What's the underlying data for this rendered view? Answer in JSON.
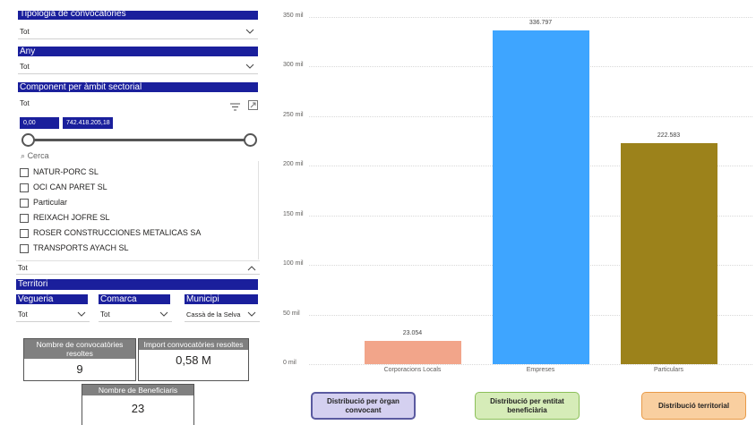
{
  "filters": {
    "tipologia": {
      "label": "Tipologia de convocatòries",
      "value": "Tot"
    },
    "any": {
      "label": "Any",
      "value": "Tot"
    },
    "component": {
      "label": "Component per àmbit sectorial",
      "value": "Tot"
    },
    "range": {
      "min": "0,00",
      "max": "742.418.205,18"
    },
    "search_placeholder": "Cerca",
    "items": [
      "NATUR-PORC SL",
      "OCI CAN PARET SL",
      "Particular",
      "REIXACH JOFRE SL",
      "ROSER CONSTRUCCIONES METALICAS SA",
      "TRANSPORTS AYACH SL"
    ],
    "list_footer_value": "Tot"
  },
  "territori": {
    "label": "Territori",
    "vegueria": {
      "label": "Vegueria",
      "value": "Tot"
    },
    "comarca": {
      "label": "Comarca",
      "value": "Tot"
    },
    "municipi": {
      "label": "Municipi",
      "value": "Cassà de la Selva"
    }
  },
  "cards": {
    "convocatories": {
      "title": "Nombre de convocatòries resoltes",
      "value": "9"
    },
    "import": {
      "title": "Import convocatòries resoltes",
      "value": "0,58 M"
    },
    "beneficiaris": {
      "title": "Nombre de Beneficiaris",
      "value": "23"
    }
  },
  "chart_data": {
    "type": "bar",
    "categories": [
      "Corporacions Locals",
      "Empreses",
      "Particulars"
    ],
    "values": [
      23054,
      336797,
      222583
    ],
    "data_labels": [
      "23.054",
      "336.797",
      "222.583"
    ],
    "colors": [
      "#f2a58a",
      "#3ea5ff",
      "#9c821b"
    ],
    "ylim": [
      0,
      350000
    ],
    "yticks": [
      0,
      50000,
      100000,
      150000,
      200000,
      250000,
      300000,
      350000
    ],
    "ytick_labels": [
      "0 mil",
      "50 mil",
      "100 mil",
      "150 mil",
      "200 mil",
      "250 mil",
      "300 mil",
      "350 mil"
    ],
    "grid": true
  },
  "nav_buttons": [
    {
      "label": "Distribució per òrgan convocant",
      "bg": "#d4d0f0",
      "border": "#5a5aa0"
    },
    {
      "label": "Distribució per entitat beneficiària",
      "bg": "#d6ecb8",
      "border": "#8cbf5a"
    },
    {
      "label": "Distribució territorial",
      "bg": "#f9cfa0",
      "border": "#e89a48"
    }
  ]
}
